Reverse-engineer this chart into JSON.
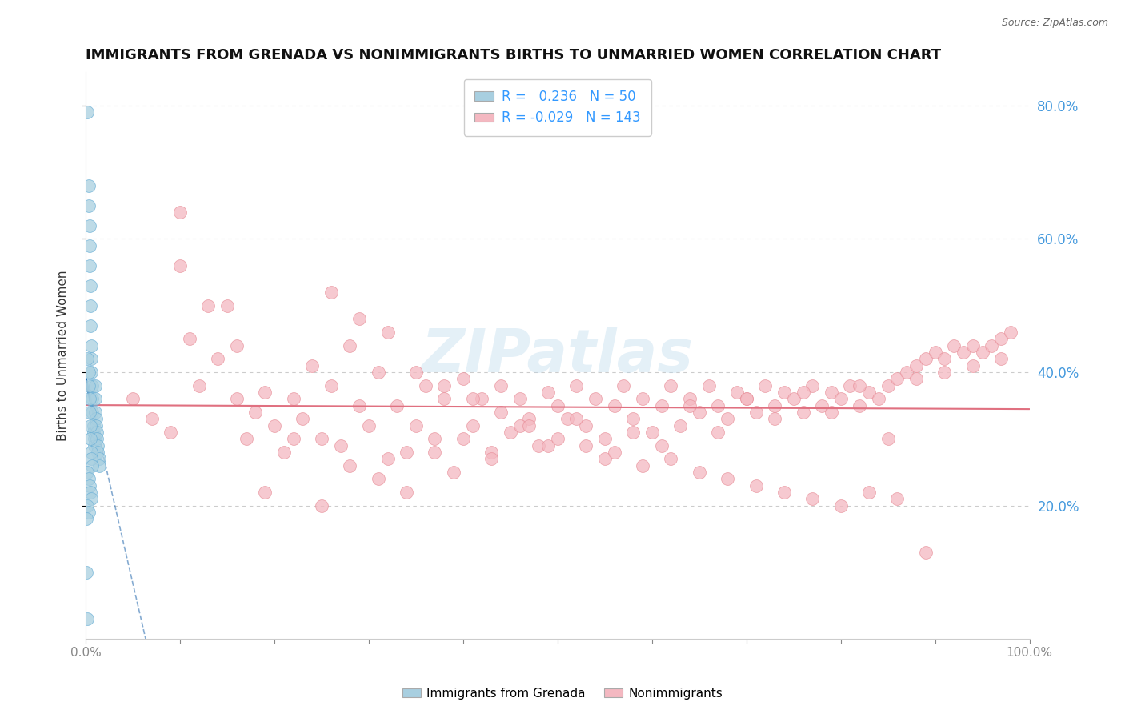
{
  "title": "IMMIGRANTS FROM GRENADA VS NONIMMIGRANTS BIRTHS TO UNMARRIED WOMEN CORRELATION CHART",
  "source_text": "Source: ZipAtlas.com",
  "ylabel": "Births to Unmarried Women",
  "xlim": [
    0.0,
    1.0
  ],
  "ylim": [
    0.0,
    0.85
  ],
  "ytick_positions": [
    0.2,
    0.4,
    0.6,
    0.8
  ],
  "ytick_labels": [
    "20.0%",
    "40.0%",
    "60.0%",
    "80.0%"
  ],
  "blue_R": 0.236,
  "blue_N": 50,
  "pink_R": -0.029,
  "pink_N": 143,
  "legend_label_blue": "Immigrants from Grenada",
  "legend_label_pink": "Nonimmigrants",
  "blue_color": "#a8cfe0",
  "pink_color": "#f4b8c1",
  "blue_edge_color": "#6aafd6",
  "pink_edge_color": "#e8909a",
  "blue_line_color": "#2166ac",
  "pink_line_color": "#e07080",
  "watermark_text": "ZIPatlas",
  "background_color": "#ffffff",
  "grid_color": "#cccccc",
  "blue_scatter_x": [
    0.002,
    0.003,
    0.003,
    0.004,
    0.004,
    0.004,
    0.005,
    0.005,
    0.005,
    0.006,
    0.006,
    0.006,
    0.007,
    0.007,
    0.007,
    0.008,
    0.008,
    0.009,
    0.009,
    0.01,
    0.01,
    0.01,
    0.011,
    0.011,
    0.012,
    0.012,
    0.013,
    0.013,
    0.014,
    0.014,
    0.002,
    0.003,
    0.003,
    0.004,
    0.004,
    0.005,
    0.005,
    0.006,
    0.006,
    0.007,
    0.002,
    0.003,
    0.004,
    0.005,
    0.006,
    0.002,
    0.003,
    0.001,
    0.001,
    0.002
  ],
  "blue_scatter_y": [
    0.79,
    0.68,
    0.65,
    0.62,
    0.59,
    0.56,
    0.53,
    0.5,
    0.47,
    0.44,
    0.42,
    0.4,
    0.38,
    0.36,
    0.34,
    0.32,
    0.31,
    0.3,
    0.29,
    0.38,
    0.36,
    0.34,
    0.33,
    0.32,
    0.31,
    0.3,
    0.29,
    0.28,
    0.27,
    0.26,
    0.42,
    0.4,
    0.38,
    0.36,
    0.34,
    0.32,
    0.3,
    0.28,
    0.27,
    0.26,
    0.25,
    0.24,
    0.23,
    0.22,
    0.21,
    0.2,
    0.19,
    0.18,
    0.1,
    0.03
  ],
  "pink_scatter_x": [
    0.05,
    0.07,
    0.09,
    0.1,
    0.11,
    0.12,
    0.14,
    0.15,
    0.16,
    0.17,
    0.18,
    0.19,
    0.2,
    0.21,
    0.22,
    0.23,
    0.24,
    0.25,
    0.26,
    0.27,
    0.28,
    0.29,
    0.3,
    0.31,
    0.32,
    0.33,
    0.34,
    0.35,
    0.36,
    0.37,
    0.38,
    0.39,
    0.4,
    0.41,
    0.42,
    0.43,
    0.44,
    0.45,
    0.46,
    0.47,
    0.48,
    0.49,
    0.5,
    0.51,
    0.52,
    0.53,
    0.54,
    0.55,
    0.56,
    0.57,
    0.58,
    0.59,
    0.6,
    0.61,
    0.62,
    0.63,
    0.64,
    0.65,
    0.66,
    0.67,
    0.68,
    0.69,
    0.7,
    0.71,
    0.72,
    0.73,
    0.74,
    0.75,
    0.76,
    0.77,
    0.78,
    0.79,
    0.8,
    0.81,
    0.82,
    0.83,
    0.84,
    0.85,
    0.86,
    0.87,
    0.88,
    0.89,
    0.9,
    0.91,
    0.92,
    0.93,
    0.94,
    0.95,
    0.96,
    0.97,
    0.98,
    0.1,
    0.13,
    0.16,
    0.19,
    0.22,
    0.25,
    0.28,
    0.31,
    0.34,
    0.37,
    0.4,
    0.43,
    0.46,
    0.49,
    0.52,
    0.55,
    0.58,
    0.61,
    0.64,
    0.67,
    0.7,
    0.73,
    0.76,
    0.79,
    0.82,
    0.85,
    0.88,
    0.91,
    0.94,
    0.97,
    0.26,
    0.29,
    0.32,
    0.35,
    0.38,
    0.41,
    0.44,
    0.47,
    0.5,
    0.53,
    0.56,
    0.59,
    0.62,
    0.65,
    0.68,
    0.71,
    0.74,
    0.77,
    0.8,
    0.83,
    0.86,
    0.89
  ],
  "pink_scatter_y": [
    0.36,
    0.33,
    0.31,
    0.56,
    0.45,
    0.38,
    0.42,
    0.5,
    0.36,
    0.3,
    0.34,
    0.37,
    0.32,
    0.28,
    0.36,
    0.33,
    0.41,
    0.3,
    0.38,
    0.29,
    0.44,
    0.35,
    0.32,
    0.4,
    0.27,
    0.35,
    0.28,
    0.32,
    0.38,
    0.3,
    0.36,
    0.25,
    0.39,
    0.32,
    0.36,
    0.28,
    0.38,
    0.31,
    0.36,
    0.33,
    0.29,
    0.37,
    0.35,
    0.33,
    0.38,
    0.32,
    0.36,
    0.3,
    0.35,
    0.38,
    0.33,
    0.36,
    0.31,
    0.35,
    0.38,
    0.32,
    0.36,
    0.34,
    0.38,
    0.35,
    0.33,
    0.37,
    0.36,
    0.34,
    0.38,
    0.35,
    0.37,
    0.36,
    0.34,
    0.38,
    0.35,
    0.37,
    0.36,
    0.38,
    0.35,
    0.37,
    0.36,
    0.38,
    0.39,
    0.4,
    0.41,
    0.42,
    0.43,
    0.42,
    0.44,
    0.43,
    0.44,
    0.43,
    0.44,
    0.45,
    0.46,
    0.64,
    0.5,
    0.44,
    0.22,
    0.3,
    0.2,
    0.26,
    0.24,
    0.22,
    0.28,
    0.3,
    0.27,
    0.32,
    0.29,
    0.33,
    0.27,
    0.31,
    0.29,
    0.35,
    0.31,
    0.36,
    0.33,
    0.37,
    0.34,
    0.38,
    0.3,
    0.39,
    0.4,
    0.41,
    0.42,
    0.52,
    0.48,
    0.46,
    0.4,
    0.38,
    0.36,
    0.34,
    0.32,
    0.3,
    0.29,
    0.28,
    0.26,
    0.27,
    0.25,
    0.24,
    0.23,
    0.22,
    0.21,
    0.2,
    0.22,
    0.21,
    0.13
  ]
}
